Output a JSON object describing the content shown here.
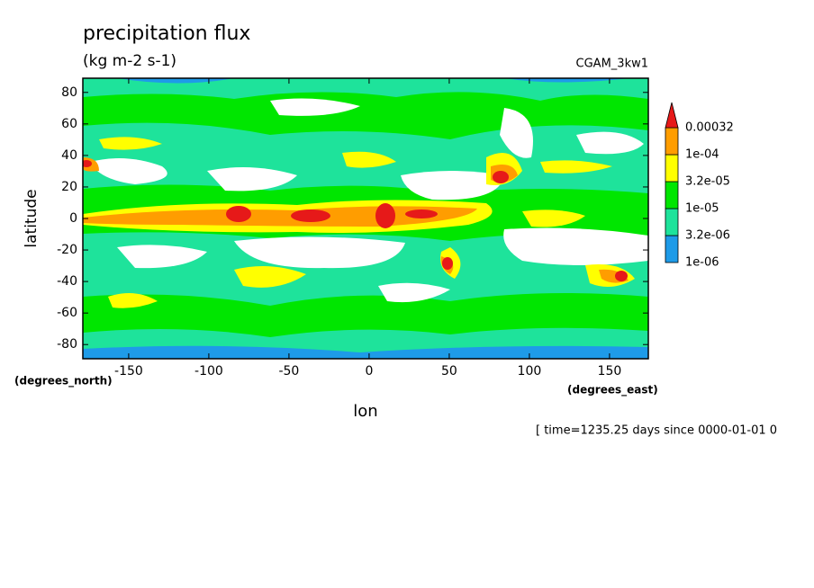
{
  "chart_data": {
    "type": "contour",
    "title": "precipitation flux",
    "subtitle": "(kg m-2 s-1)",
    "dataset": "CGAM_3kw1",
    "x_label": "lon",
    "y_label": "latitude",
    "y_units": "(degrees_north)",
    "x_units": "(degrees_east)",
    "footer": "[ time=1235.25 days since 0000-01-01 0",
    "xlim": [
      -178.6,
      174.2
    ],
    "ylim": [
      -89,
      89
    ],
    "xticks": [
      -150,
      -100,
      -50,
      0,
      50,
      100,
      150
    ],
    "yticks": [
      -80,
      -60,
      -40,
      -20,
      0,
      20,
      40,
      60,
      80
    ],
    "levels": [
      {
        "value": 1e-06,
        "label": "1e-06"
      },
      {
        "value": 3.2e-06,
        "label": "3.2e-06"
      },
      {
        "value": 1e-05,
        "label": "1e-05"
      },
      {
        "value": 3.2e-05,
        "label": "3.2e-05"
      },
      {
        "value": 0.0001,
        "label": "1e-04"
      },
      0.00032
    ],
    "colors": [
      "#ffffff",
      "#1e9be8",
      "#1ee39b",
      "#00e600",
      "#ffff00",
      "#ff9d00",
      "#e61919"
    ]
  }
}
